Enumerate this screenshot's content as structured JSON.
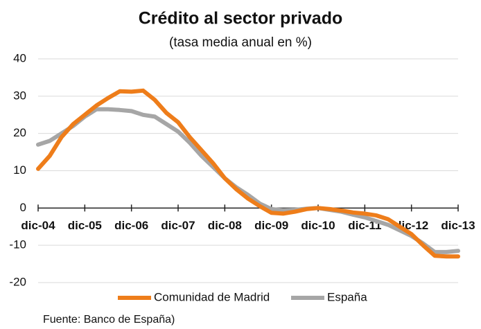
{
  "chart_data": {
    "type": "line",
    "title": "Crédito al sector privado",
    "subtitle": "(tasa media anual en  %)",
    "source": "Fuente: Banco de España)",
    "categories": [
      "dic-04",
      null,
      null,
      null,
      "dic-05",
      null,
      null,
      null,
      "dic-06",
      null,
      null,
      null,
      "dic-07",
      null,
      null,
      null,
      "dic-08",
      null,
      null,
      null,
      "dic-09",
      null,
      null,
      null,
      "dic-10",
      null,
      null,
      null,
      "dic-11",
      null,
      null,
      null,
      "dic-12",
      null,
      null,
      null,
      "dic-13"
    ],
    "series": [
      {
        "name": "Comunidad de Madrid",
        "color": "#ee7d1a",
        "values": [
          10.5,
          14,
          19,
          22.5,
          25,
          27.5,
          29.5,
          31.3,
          31.2,
          31.5,
          29,
          25.5,
          23,
          19,
          15.5,
          12,
          8,
          5,
          2.5,
          0.5,
          -1.3,
          -1.5,
          -1,
          -0.3,
          0,
          -0.3,
          -0.7,
          -1.2,
          -1.5,
          -2,
          -3,
          -5,
          -7,
          -10,
          -12.8,
          -13,
          -13
        ]
      },
      {
        "name": "España",
        "color": "#a6a6a6",
        "values": [
          17,
          18,
          20,
          22,
          24.5,
          26.5,
          26.5,
          26.3,
          26,
          25,
          24.5,
          22.5,
          20.5,
          17.5,
          14,
          11,
          8,
          5.5,
          3.5,
          1.2,
          -0.3,
          -0.6,
          -0.5,
          -0.2,
          0,
          -0.5,
          -1,
          -1.8,
          -2.5,
          -3.5,
          -4.5,
          -6,
          -7.5,
          -9.5,
          -11.8,
          -11.8,
          -11.5
        ]
      }
    ],
    "ylim": [
      -20,
      40
    ],
    "yticks": [
      -20,
      -10,
      0,
      10,
      20,
      30,
      40
    ],
    "grid": true,
    "legend": "bottom"
  }
}
